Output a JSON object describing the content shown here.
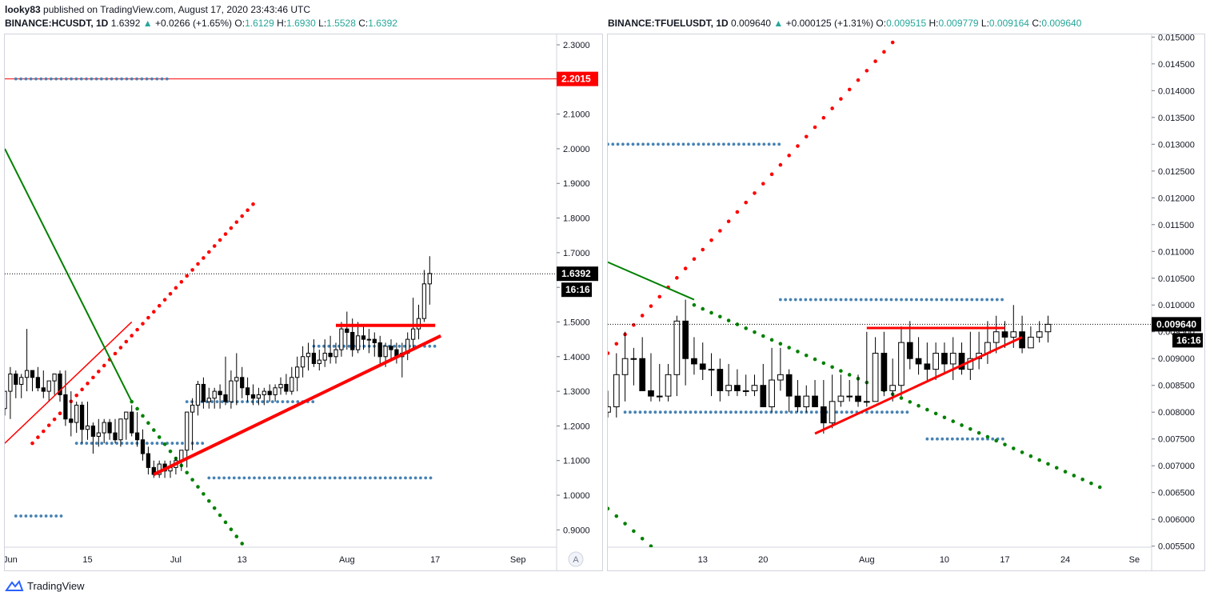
{
  "header": {
    "author": "looky83",
    "published": "published on TradingView.com, August 17, 2020 23:43:46 UTC"
  },
  "footer": {
    "brand": "TradingView"
  },
  "colors": {
    "red": "#ff0000",
    "green": "#008000",
    "blue_dots": "#4682b4",
    "candle_up": "#ffffff",
    "candle_down": "#000000",
    "axis_text": "#131722"
  },
  "chart_data": [
    {
      "type": "candlestick",
      "symbol": "BINANCE:HCUSDT, 1D",
      "last": "1.6392",
      "change_arrow": "▲",
      "change": "+0.0266 (+1.65%)",
      "ohlc": {
        "O": "1.6129",
        "H": "1.6930",
        "L": "1.5528",
        "C": "1.6392"
      },
      "price_label": "1.6392",
      "timer_label": "16:16",
      "hline_label": "2.2015",
      "hline_value": 2.2015,
      "ylim": [
        0.85,
        2.33
      ],
      "yticks": [
        0.9,
        1.0,
        1.1,
        1.2,
        1.3,
        1.4,
        1.5,
        1.6,
        1.7,
        1.8,
        1.9,
        2.0,
        2.1,
        2.2,
        2.3
      ],
      "ytick_labels": [
        "0.9000",
        "1.0000",
        "1.1000",
        "1.2000",
        "1.3000",
        "1.4000",
        "1.5000",
        "1.6000",
        "1.7000",
        "1.8000",
        "1.9000",
        "2.0000",
        "2.1000",
        "2.2000",
        "2.3000"
      ],
      "xlim": [
        "2020-05-31",
        "2020-09-08"
      ],
      "xticks": [
        {
          "date": "2020-06-01",
          "label": "Jun"
        },
        {
          "date": "2020-06-15",
          "label": "15"
        },
        {
          "date": "2020-07-01",
          "label": "Jul"
        },
        {
          "date": "2020-07-13",
          "label": "13"
        },
        {
          "date": "2020-08-01",
          "label": "Aug"
        },
        {
          "date": "2020-08-17",
          "label": "17"
        },
        {
          "date": "2020-09-01",
          "label": "Sep"
        }
      ],
      "auto_badge": "A",
      "candles": {
        "start": "2020-05-31",
        "o": [
          1.25,
          1.3,
          1.35,
          1.32,
          1.34,
          1.36,
          1.34,
          1.31,
          1.3,
          1.33,
          1.35,
          1.29,
          1.22,
          1.21,
          1.26,
          1.19,
          1.2,
          1.17,
          1.18,
          1.21,
          1.18,
          1.16,
          1.22,
          1.24,
          1.18,
          1.16,
          1.12,
          1.08,
          1.06,
          1.09,
          1.07,
          1.08,
          1.1,
          1.13,
          1.24,
          1.26,
          1.32,
          1.27,
          1.28,
          1.3,
          1.29,
          1.27,
          1.33,
          1.34,
          1.31,
          1.29,
          1.28,
          1.29,
          1.3,
          1.29,
          1.31,
          1.32,
          1.3,
          1.34,
          1.37,
          1.4,
          1.41,
          1.38,
          1.39,
          1.41,
          1.4,
          1.42,
          1.48,
          1.47,
          1.42,
          1.46,
          1.45,
          1.45,
          1.44,
          1.4,
          1.43,
          1.42,
          1.4,
          1.41,
          1.45,
          1.48,
          1.51,
          1.61
        ],
        "h": [
          1.28,
          1.37,
          1.36,
          1.35,
          1.48,
          1.36,
          1.37,
          1.36,
          1.33,
          1.34,
          1.36,
          1.36,
          1.3,
          1.27,
          1.27,
          1.27,
          1.21,
          1.22,
          1.22,
          1.22,
          1.22,
          1.22,
          1.24,
          1.26,
          1.24,
          1.19,
          1.14,
          1.1,
          1.1,
          1.1,
          1.1,
          1.11,
          1.13,
          1.24,
          1.28,
          1.33,
          1.34,
          1.31,
          1.31,
          1.32,
          1.4,
          1.36,
          1.41,
          1.37,
          1.34,
          1.32,
          1.31,
          1.31,
          1.32,
          1.32,
          1.34,
          1.35,
          1.37,
          1.4,
          1.43,
          1.44,
          1.45,
          1.42,
          1.45,
          1.46,
          1.44,
          1.5,
          1.53,
          1.51,
          1.5,
          1.49,
          1.48,
          1.47,
          1.46,
          1.44,
          1.45,
          1.44,
          1.44,
          1.47,
          1.57,
          1.55,
          1.65,
          1.69
        ],
        "l": [
          1.23,
          1.22,
          1.28,
          1.28,
          1.3,
          1.3,
          1.3,
          1.28,
          1.27,
          1.29,
          1.27,
          1.2,
          1.17,
          1.18,
          1.15,
          1.16,
          1.12,
          1.14,
          1.15,
          1.16,
          1.15,
          1.14,
          1.16,
          1.17,
          1.14,
          1.1,
          1.06,
          1.05,
          1.05,
          1.05,
          1.05,
          1.06,
          1.07,
          1.08,
          1.13,
          1.23,
          1.25,
          1.25,
          1.25,
          1.25,
          1.26,
          1.25,
          1.26,
          1.28,
          1.27,
          1.26,
          1.26,
          1.26,
          1.27,
          1.27,
          1.29,
          1.29,
          1.29,
          1.3,
          1.34,
          1.36,
          1.37,
          1.36,
          1.37,
          1.38,
          1.38,
          1.4,
          1.42,
          1.4,
          1.41,
          1.42,
          1.41,
          1.4,
          1.38,
          1.37,
          1.39,
          1.38,
          1.34,
          1.39,
          1.42,
          1.45,
          1.5,
          1.55
        ],
        "c": [
          1.3,
          1.35,
          1.32,
          1.34,
          1.36,
          1.34,
          1.31,
          1.3,
          1.33,
          1.35,
          1.29,
          1.22,
          1.21,
          1.26,
          1.19,
          1.2,
          1.17,
          1.18,
          1.21,
          1.18,
          1.16,
          1.22,
          1.24,
          1.18,
          1.16,
          1.12,
          1.08,
          1.06,
          1.09,
          1.07,
          1.08,
          1.1,
          1.13,
          1.24,
          1.26,
          1.32,
          1.27,
          1.28,
          1.3,
          1.29,
          1.27,
          1.33,
          1.34,
          1.31,
          1.29,
          1.28,
          1.29,
          1.3,
          1.29,
          1.31,
          1.32,
          1.3,
          1.34,
          1.37,
          1.4,
          1.41,
          1.38,
          1.39,
          1.41,
          1.4,
          1.42,
          1.48,
          1.47,
          1.42,
          1.46,
          1.45,
          1.45,
          1.44,
          1.4,
          1.43,
          1.42,
          1.4,
          1.41,
          1.45,
          1.48,
          1.51,
          1.61,
          1.64
        ]
      },
      "trendlines": [
        {
          "color": "red",
          "width": 1.5,
          "from": [
            "2020-05-31",
            1.15
          ],
          "to": [
            "2020-06-23",
            1.5
          ]
        },
        {
          "color": "green",
          "width": 2,
          "from": [
            "2020-05-31",
            2.0
          ],
          "to": [
            "2020-06-23",
            1.27
          ]
        },
        {
          "color": "red",
          "width": 4,
          "from": [
            "2020-06-27",
            1.06
          ],
          "to": [
            "2020-08-18",
            1.46
          ]
        },
        {
          "color": "red",
          "width": 4,
          "from": [
            "2020-07-30",
            1.49
          ],
          "to": [
            "2020-08-17",
            1.49
          ]
        }
      ],
      "dotted_levels": [
        {
          "value": 2.2015,
          "from": "2020-06-02",
          "to": "2020-06-30"
        },
        {
          "value": 0.94,
          "from": "2020-06-02",
          "to": "2020-06-11"
        },
        {
          "value": 1.15,
          "from": "2020-06-13",
          "to": "2020-07-06"
        },
        {
          "value": 1.27,
          "from": "2020-07-03",
          "to": "2020-07-26"
        },
        {
          "value": 1.43,
          "from": "2020-07-26",
          "to": "2020-08-17"
        },
        {
          "value": 1.05,
          "from": "2020-07-07",
          "to": "2020-08-17"
        }
      ],
      "psar": [
        {
          "color": "red",
          "from": [
            "2020-06-05",
            1.15
          ],
          "to": [
            "2020-07-15",
            1.84
          ],
          "step": 1
        },
        {
          "color": "green",
          "from": [
            "2020-06-23",
            1.27
          ],
          "to": [
            "2020-07-14",
            0.84
          ],
          "step": 1
        }
      ]
    },
    {
      "type": "candlestick",
      "symbol": "BINANCE:TFUELUSDT, 1D",
      "last": "0.009640",
      "change_arrow": "▲",
      "change": "+0.000125 (+1.31%)",
      "ohlc": {
        "O": "0.009515",
        "H": "0.009779",
        "L": "0.009164",
        "C": "0.009640"
      },
      "price_label": "0.009640",
      "timer_label": "16:16",
      "ylim": [
        0.00548,
        0.01505
      ],
      "yticks": [
        0.0055,
        0.006,
        0.0065,
        0.007,
        0.0075,
        0.008,
        0.0085,
        0.009,
        0.0095,
        0.01,
        0.0105,
        0.011,
        0.0115,
        0.012,
        0.0125,
        0.013,
        0.0135,
        0.014,
        0.0145,
        0.015
      ],
      "ytick_labels": [
        "0.005500",
        "0.006000",
        "0.006500",
        "0.007000",
        "0.007500",
        "0.008000",
        "0.008500",
        "0.009000",
        "0.009500",
        "0.010000",
        "0.010500",
        "0.011000",
        "0.011500",
        "0.012000",
        "0.012500",
        "0.013000",
        "0.013500",
        "0.014000",
        "0.014500",
        "0.015000"
      ],
      "xlim": [
        "2020-07-02",
        "2020-09-03"
      ],
      "xticks": [
        {
          "date": "2020-07-13",
          "label": "13"
        },
        {
          "date": "2020-07-20",
          "label": "20"
        },
        {
          "date": "2020-08-01",
          "label": "Aug"
        },
        {
          "date": "2020-08-10",
          "label": "10"
        },
        {
          "date": "2020-08-17",
          "label": "17"
        },
        {
          "date": "2020-08-24",
          "label": "24"
        },
        {
          "date": "2020-09-01",
          "label": "Se"
        }
      ],
      "candles": {
        "start": "2020-07-02",
        "o": [
          0.008,
          0.0081,
          0.0087,
          0.009,
          0.009,
          0.0084,
          0.0083,
          0.0083,
          0.0087,
          0.0097,
          0.009,
          0.0089,
          0.0088,
          0.0088,
          0.0084,
          0.0085,
          0.0084,
          0.0084,
          0.0085,
          0.0081,
          0.0086,
          0.0087,
          0.0083,
          0.0081,
          0.0083,
          0.0081,
          0.0078,
          0.0082,
          0.0083,
          0.0083,
          0.0082,
          0.0082,
          0.0091,
          0.0084,
          0.0085,
          0.0093,
          0.009,
          0.0089,
          0.0088,
          0.0091,
          0.0089,
          0.0091,
          0.0088,
          0.009,
          0.0091,
          0.0093,
          0.0095,
          0.0094,
          0.0095,
          0.0092,
          0.0094,
          0.0095
        ],
        "h": [
          0.0084,
          0.0091,
          0.0095,
          0.0092,
          0.0094,
          0.0091,
          0.0089,
          0.0089,
          0.0098,
          0.0101,
          0.0094,
          0.0093,
          0.0091,
          0.009,
          0.0089,
          0.0088,
          0.0087,
          0.0087,
          0.0089,
          0.0092,
          0.0092,
          0.0088,
          0.0086,
          0.0085,
          0.0086,
          0.0086,
          0.0087,
          0.0087,
          0.0086,
          0.0087,
          0.0095,
          0.0094,
          0.0095,
          0.009,
          0.0096,
          0.0097,
          0.0094,
          0.0093,
          0.0093,
          0.0093,
          0.0094,
          0.0093,
          0.0095,
          0.0095,
          0.0097,
          0.0098,
          0.0097,
          0.01,
          0.0098,
          0.0096,
          0.0097,
          0.0098
        ],
        "l": [
          0.0079,
          0.0079,
          0.0082,
          0.0085,
          0.0084,
          0.0082,
          0.0082,
          0.0082,
          0.0083,
          0.0085,
          0.0087,
          0.0086,
          0.0083,
          0.0082,
          0.0083,
          0.0083,
          0.0083,
          0.0083,
          0.0081,
          0.008,
          0.0084,
          0.008,
          0.008,
          0.008,
          0.0081,
          0.0076,
          0.0077,
          0.0081,
          0.0082,
          0.0081,
          0.0081,
          0.0082,
          0.0083,
          0.0082,
          0.0083,
          0.0088,
          0.0087,
          0.0086,
          0.0086,
          0.0087,
          0.0086,
          0.0087,
          0.0086,
          0.0088,
          0.0089,
          0.0091,
          0.0092,
          0.0092,
          0.0091,
          0.0092,
          0.0093,
          0.0093
        ],
        "c": [
          0.0081,
          0.0087,
          0.009,
          0.009,
          0.0084,
          0.0083,
          0.0083,
          0.0087,
          0.0097,
          0.009,
          0.0089,
          0.0088,
          0.0088,
          0.0084,
          0.0085,
          0.0084,
          0.0084,
          0.0085,
          0.0081,
          0.0086,
          0.0087,
          0.0083,
          0.0081,
          0.0083,
          0.0081,
          0.0078,
          0.0082,
          0.0083,
          0.0083,
          0.0082,
          0.0082,
          0.0091,
          0.0084,
          0.0085,
          0.0093,
          0.009,
          0.0089,
          0.0088,
          0.0091,
          0.0089,
          0.0091,
          0.0088,
          0.009,
          0.0091,
          0.0093,
          0.0095,
          0.0094,
          0.0095,
          0.0092,
          0.0094,
          0.0095,
          0.00964
        ]
      },
      "trendlines": [
        {
          "color": "green",
          "width": 2,
          "from": [
            "2020-07-02",
            0.0108
          ],
          "to": [
            "2020-07-12",
            0.0101
          ]
        },
        {
          "color": "red",
          "width": 3,
          "from": [
            "2020-07-26",
            0.0076
          ],
          "to": [
            "2020-08-19",
            0.0094
          ]
        },
        {
          "color": "red",
          "width": 3,
          "from": [
            "2020-08-01",
            0.00957
          ],
          "to": [
            "2020-08-17",
            0.00957
          ]
        }
      ],
      "dotted_levels": [
        {
          "value": 0.013,
          "from": "2020-07-02",
          "to": "2020-07-22"
        },
        {
          "value": 0.0101,
          "from": "2020-07-22",
          "to": "2020-08-17"
        },
        {
          "value": 0.008,
          "from": "2020-07-04",
          "to": "2020-08-06"
        },
        {
          "value": 0.0075,
          "from": "2020-08-08",
          "to": "2020-08-17"
        }
      ],
      "psar": [
        {
          "color": "red",
          "from": [
            "2020-07-02",
            0.0091
          ],
          "to": [
            "2020-08-04",
            0.0149
          ],
          "step": 1
        },
        {
          "color": "green",
          "from": [
            "2020-07-12",
            0.01
          ],
          "to": [
            "2020-08-28",
            0.0066
          ],
          "step": 1
        },
        {
          "color": "green",
          "from": [
            "2020-07-02",
            0.0062
          ],
          "to": [
            "2020-07-07",
            0.0055
          ],
          "step": 1
        }
      ]
    }
  ]
}
